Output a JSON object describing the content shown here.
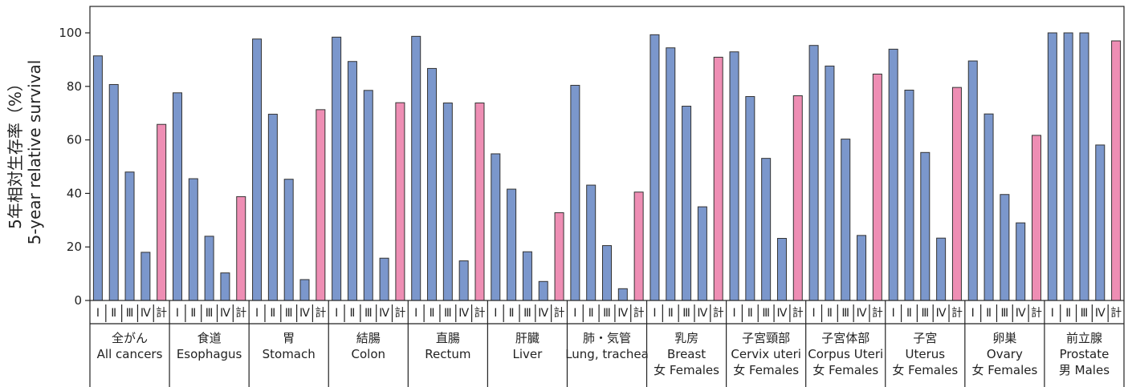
{
  "chart_data": {
    "type": "bar",
    "ylabel_lines": [
      "5年相対生存率（%）",
      "5-year relative survival"
    ],
    "ylim": [
      0,
      100
    ],
    "yticks": [
      0,
      20,
      40,
      60,
      80,
      100
    ],
    "stage_labels": [
      "Ⅰ",
      "Ⅱ",
      "Ⅲ",
      "Ⅳ",
      "計"
    ],
    "colors": {
      "stage": "#7b97cc",
      "total": "#ee8eb4",
      "edge": "#333333"
    },
    "groups": [
      {
        "label_lines": [
          "全がん",
          "All cancers"
        ],
        "values": [
          91.4,
          80.7,
          48.0,
          18.0,
          65.8
        ]
      },
      {
        "label_lines": [
          "食道",
          "Esophagus"
        ],
        "values": [
          77.6,
          45.5,
          24.0,
          10.3,
          38.8
        ]
      },
      {
        "label_lines": [
          "胃",
          "Stomach"
        ],
        "values": [
          97.7,
          69.6,
          45.3,
          7.8,
          71.3
        ]
      },
      {
        "label_lines": [
          "結腸",
          "Colon"
        ],
        "values": [
          98.4,
          89.3,
          78.5,
          15.8,
          73.9
        ]
      },
      {
        "label_lines": [
          "直腸",
          "Rectum"
        ],
        "values": [
          98.7,
          86.7,
          73.8,
          14.8,
          73.8
        ]
      },
      {
        "label_lines": [
          "肝臓",
          "Liver"
        ],
        "values": [
          54.8,
          41.6,
          18.2,
          7.1,
          32.8
        ]
      },
      {
        "label_lines": [
          "肺・気管",
          "Lung, trachea"
        ],
        "values": [
          80.4,
          43.1,
          20.5,
          4.4,
          40.5
        ]
      },
      {
        "label_lines": [
          "乳房",
          "Breast",
          "女 Females"
        ],
        "values": [
          99.3,
          94.4,
          72.6,
          35.0,
          90.9
        ]
      },
      {
        "label_lines": [
          "子宮頸部",
          "Cervix uteri",
          "女 Females"
        ],
        "values": [
          92.9,
          76.2,
          53.1,
          23.2,
          76.5
        ]
      },
      {
        "label_lines": [
          "子宮体部",
          "Corpus Uteri",
          "女 Females"
        ],
        "values": [
          95.3,
          87.6,
          60.3,
          24.3,
          84.6
        ]
      },
      {
        "label_lines": [
          "子宮",
          "Uterus",
          "女 Females"
        ],
        "values": [
          93.9,
          78.6,
          55.3,
          23.3,
          79.6
        ]
      },
      {
        "label_lines": [
          "卵巣",
          "Ovary",
          "女 Females"
        ],
        "values": [
          89.5,
          69.7,
          39.6,
          29.0,
          61.7
        ]
      },
      {
        "label_lines": [
          "前立腺",
          "Prostate",
          "男 Males"
        ],
        "values": [
          100.0,
          100.0,
          100.0,
          58.1,
          97.0
        ]
      }
    ]
  }
}
